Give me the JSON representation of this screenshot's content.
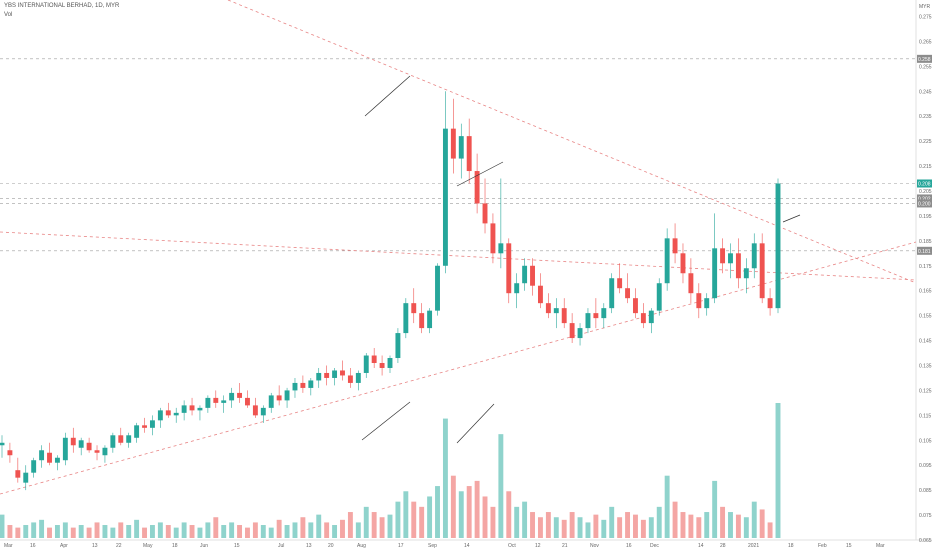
{
  "header": {
    "title": "YBS INTERNATIONAL BERHAD, 1D, MYR",
    "volume_label": "Vol"
  },
  "colors": {
    "up": "#26a69a",
    "down": "#ef5350",
    "up_volume": "#8fd3cc",
    "down_volume": "#f4a6a4",
    "trendline": "#e88585",
    "hline": "#9e9e9e",
    "last_price_tag": "#26a69a",
    "level_tag": "#8c8c8c"
  },
  "chart_data": {
    "type": "candlestick",
    "symbol": "YBS INTERNATIONAL BERHAD",
    "interval": "1D",
    "currency": "MYR",
    "x_tick_labels": [
      "Mar",
      "16",
      "Apr",
      "13",
      "22",
      "May",
      "18",
      "Jun",
      "15",
      "Jul",
      "13",
      "20",
      "Aug",
      "17",
      "Sep",
      "14",
      "Oct",
      "12",
      "21",
      "Nov",
      "16",
      "Dec",
      "14",
      "28",
      "2021",
      "18",
      "Feb",
      "15",
      "Mar"
    ],
    "y_tick_labels": [
      "0.275",
      "0.265",
      "0.255",
      "0.245",
      "0.235",
      "0.225",
      "0.215",
      "0.205",
      "0.195",
      "0.185",
      "0.175",
      "0.165",
      "0.155",
      "0.145",
      "0.135",
      "0.125",
      "0.115",
      "0.105",
      "0.095",
      "0.085",
      "0.075",
      "0.065"
    ],
    "y_unit_label": "MYR",
    "price_tags": [
      {
        "value": "0.258",
        "kind": "level"
      },
      {
        "value": "0.208",
        "kind": "last"
      },
      {
        "value": "0.202",
        "kind": "level"
      },
      {
        "value": "0.200",
        "kind": "level"
      },
      {
        "value": "0.181",
        "kind": "level"
      }
    ],
    "candles": [
      [
        0.103,
        0.107,
        0.098,
        0.104
      ],
      [
        0.101,
        0.104,
        0.096,
        0.099
      ],
      [
        0.093,
        0.098,
        0.088,
        0.09
      ],
      [
        0.088,
        0.095,
        0.085,
        0.092
      ],
      [
        0.092,
        0.098,
        0.09,
        0.097
      ],
      [
        0.097,
        0.103,
        0.094,
        0.101
      ],
      [
        0.1,
        0.104,
        0.095,
        0.096
      ],
      [
        0.096,
        0.099,
        0.093,
        0.098
      ],
      [
        0.097,
        0.108,
        0.095,
        0.106
      ],
      [
        0.106,
        0.11,
        0.1,
        0.103
      ],
      [
        0.102,
        0.106,
        0.099,
        0.105
      ],
      [
        0.104,
        0.106,
        0.1,
        0.101
      ],
      [
        0.101,
        0.103,
        0.097,
        0.1
      ],
      [
        0.099,
        0.103,
        0.096,
        0.102
      ],
      [
        0.102,
        0.108,
        0.1,
        0.107
      ],
      [
        0.107,
        0.11,
        0.103,
        0.104
      ],
      [
        0.104,
        0.108,
        0.102,
        0.107
      ],
      [
        0.106,
        0.112,
        0.104,
        0.111
      ],
      [
        0.111,
        0.114,
        0.108,
        0.11
      ],
      [
        0.11,
        0.115,
        0.107,
        0.113
      ],
      [
        0.113,
        0.118,
        0.11,
        0.117
      ],
      [
        0.117,
        0.12,
        0.114,
        0.115
      ],
      [
        0.115,
        0.118,
        0.112,
        0.116
      ],
      [
        0.116,
        0.121,
        0.113,
        0.119
      ],
      [
        0.119,
        0.122,
        0.115,
        0.117
      ],
      [
        0.117,
        0.119,
        0.113,
        0.118
      ],
      [
        0.118,
        0.123,
        0.116,
        0.122
      ],
      [
        0.122,
        0.125,
        0.118,
        0.12
      ],
      [
        0.12,
        0.123,
        0.116,
        0.121
      ],
      [
        0.121,
        0.126,
        0.118,
        0.124
      ],
      [
        0.124,
        0.128,
        0.12,
        0.122
      ],
      [
        0.122,
        0.125,
        0.118,
        0.119
      ],
      [
        0.119,
        0.122,
        0.114,
        0.115
      ],
      [
        0.115,
        0.119,
        0.112,
        0.118
      ],
      [
        0.118,
        0.124,
        0.116,
        0.123
      ],
      [
        0.123,
        0.127,
        0.119,
        0.121
      ],
      [
        0.121,
        0.126,
        0.118,
        0.125
      ],
      [
        0.125,
        0.13,
        0.122,
        0.128
      ],
      [
        0.128,
        0.131,
        0.124,
        0.126
      ],
      [
        0.126,
        0.13,
        0.123,
        0.129
      ],
      [
        0.129,
        0.134,
        0.126,
        0.132
      ],
      [
        0.132,
        0.135,
        0.127,
        0.13
      ],
      [
        0.13,
        0.134,
        0.127,
        0.133
      ],
      [
        0.133,
        0.137,
        0.129,
        0.131
      ],
      [
        0.131,
        0.134,
        0.126,
        0.128
      ],
      [
        0.128,
        0.133,
        0.125,
        0.132
      ],
      [
        0.132,
        0.14,
        0.13,
        0.139
      ],
      [
        0.139,
        0.142,
        0.134,
        0.136
      ],
      [
        0.136,
        0.139,
        0.131,
        0.134
      ],
      [
        0.134,
        0.139,
        0.132,
        0.138
      ],
      [
        0.138,
        0.15,
        0.136,
        0.148
      ],
      [
        0.148,
        0.162,
        0.146,
        0.16
      ],
      [
        0.16,
        0.166,
        0.152,
        0.156
      ],
      [
        0.156,
        0.16,
        0.148,
        0.15
      ],
      [
        0.15,
        0.158,
        0.148,
        0.157
      ],
      [
        0.157,
        0.176,
        0.155,
        0.175
      ],
      [
        0.175,
        0.245,
        0.172,
        0.23
      ],
      [
        0.23,
        0.242,
        0.212,
        0.218
      ],
      [
        0.218,
        0.232,
        0.21,
        0.227
      ],
      [
        0.227,
        0.234,
        0.208,
        0.213
      ],
      [
        0.213,
        0.22,
        0.196,
        0.2
      ],
      [
        0.2,
        0.21,
        0.188,
        0.192
      ],
      [
        0.192,
        0.196,
        0.176,
        0.18
      ],
      [
        0.18,
        0.21,
        0.174,
        0.184
      ],
      [
        0.184,
        0.186,
        0.16,
        0.164
      ],
      [
        0.164,
        0.172,
        0.158,
        0.168
      ],
      [
        0.168,
        0.178,
        0.165,
        0.175
      ],
      [
        0.175,
        0.178,
        0.163,
        0.167
      ],
      [
        0.167,
        0.172,
        0.158,
        0.16
      ],
      [
        0.16,
        0.164,
        0.154,
        0.156
      ],
      [
        0.156,
        0.162,
        0.15,
        0.158
      ],
      [
        0.158,
        0.162,
        0.15,
        0.152
      ],
      [
        0.152,
        0.156,
        0.144,
        0.146
      ],
      [
        0.146,
        0.152,
        0.143,
        0.15
      ],
      [
        0.15,
        0.158,
        0.148,
        0.156
      ],
      [
        0.156,
        0.162,
        0.15,
        0.154
      ],
      [
        0.154,
        0.16,
        0.15,
        0.158
      ],
      [
        0.158,
        0.172,
        0.156,
        0.17
      ],
      [
        0.17,
        0.176,
        0.164,
        0.166
      ],
      [
        0.166,
        0.172,
        0.16,
        0.162
      ],
      [
        0.162,
        0.166,
        0.154,
        0.156
      ],
      [
        0.156,
        0.16,
        0.15,
        0.152
      ],
      [
        0.152,
        0.158,
        0.148,
        0.157
      ],
      [
        0.157,
        0.17,
        0.155,
        0.168
      ],
      [
        0.168,
        0.19,
        0.165,
        0.186
      ],
      [
        0.186,
        0.192,
        0.176,
        0.18
      ],
      [
        0.18,
        0.184,
        0.168,
        0.172
      ],
      [
        0.172,
        0.178,
        0.16,
        0.164
      ],
      [
        0.164,
        0.168,
        0.154,
        0.158
      ],
      [
        0.158,
        0.164,
        0.155,
        0.162
      ],
      [
        0.162,
        0.196,
        0.16,
        0.182
      ],
      [
        0.182,
        0.186,
        0.172,
        0.176
      ],
      [
        0.176,
        0.184,
        0.17,
        0.18
      ],
      [
        0.18,
        0.186,
        0.166,
        0.17
      ],
      [
        0.17,
        0.178,
        0.164,
        0.174
      ],
      [
        0.174,
        0.188,
        0.17,
        0.184
      ],
      [
        0.184,
        0.188,
        0.16,
        0.162
      ],
      [
        0.162,
        0.166,
        0.155,
        0.158
      ],
      [
        0.158,
        0.21,
        0.156,
        0.208
      ]
    ],
    "volumes": [
      0.45,
      0.25,
      0.2,
      0.25,
      0.3,
      0.35,
      0.2,
      0.25,
      0.3,
      0.2,
      0.25,
      0.2,
      0.3,
      0.25,
      0.2,
      0.3,
      0.25,
      0.35,
      0.2,
      0.25,
      0.3,
      0.25,
      0.2,
      0.3,
      0.25,
      0.2,
      0.3,
      0.4,
      0.25,
      0.3,
      0.25,
      0.2,
      0.3,
      0.25,
      0.2,
      0.35,
      0.25,
      0.3,
      0.4,
      0.3,
      0.45,
      0.3,
      0.25,
      0.35,
      0.5,
      0.3,
      0.6,
      0.5,
      0.4,
      0.45,
      0.7,
      0.9,
      0.7,
      0.6,
      0.8,
      1.0,
      2.3,
      1.2,
      0.9,
      1.0,
      1.1,
      0.8,
      0.6,
      2.0,
      0.9,
      0.6,
      0.7,
      0.5,
      0.4,
      0.5,
      0.4,
      0.35,
      0.5,
      0.4,
      0.3,
      0.45,
      0.35,
      0.6,
      0.4,
      0.5,
      0.45,
      0.35,
      0.4,
      0.6,
      1.2,
      0.7,
      0.5,
      0.45,
      0.4,
      0.5,
      1.1,
      0.6,
      0.5,
      0.45,
      0.4,
      0.7,
      0.55,
      0.3,
      2.6
    ],
    "horizontal_levels": [
      0.258,
      0.208,
      0.202,
      0.2,
      0.181
    ],
    "ylim": [
      0.065,
      0.28
    ]
  }
}
